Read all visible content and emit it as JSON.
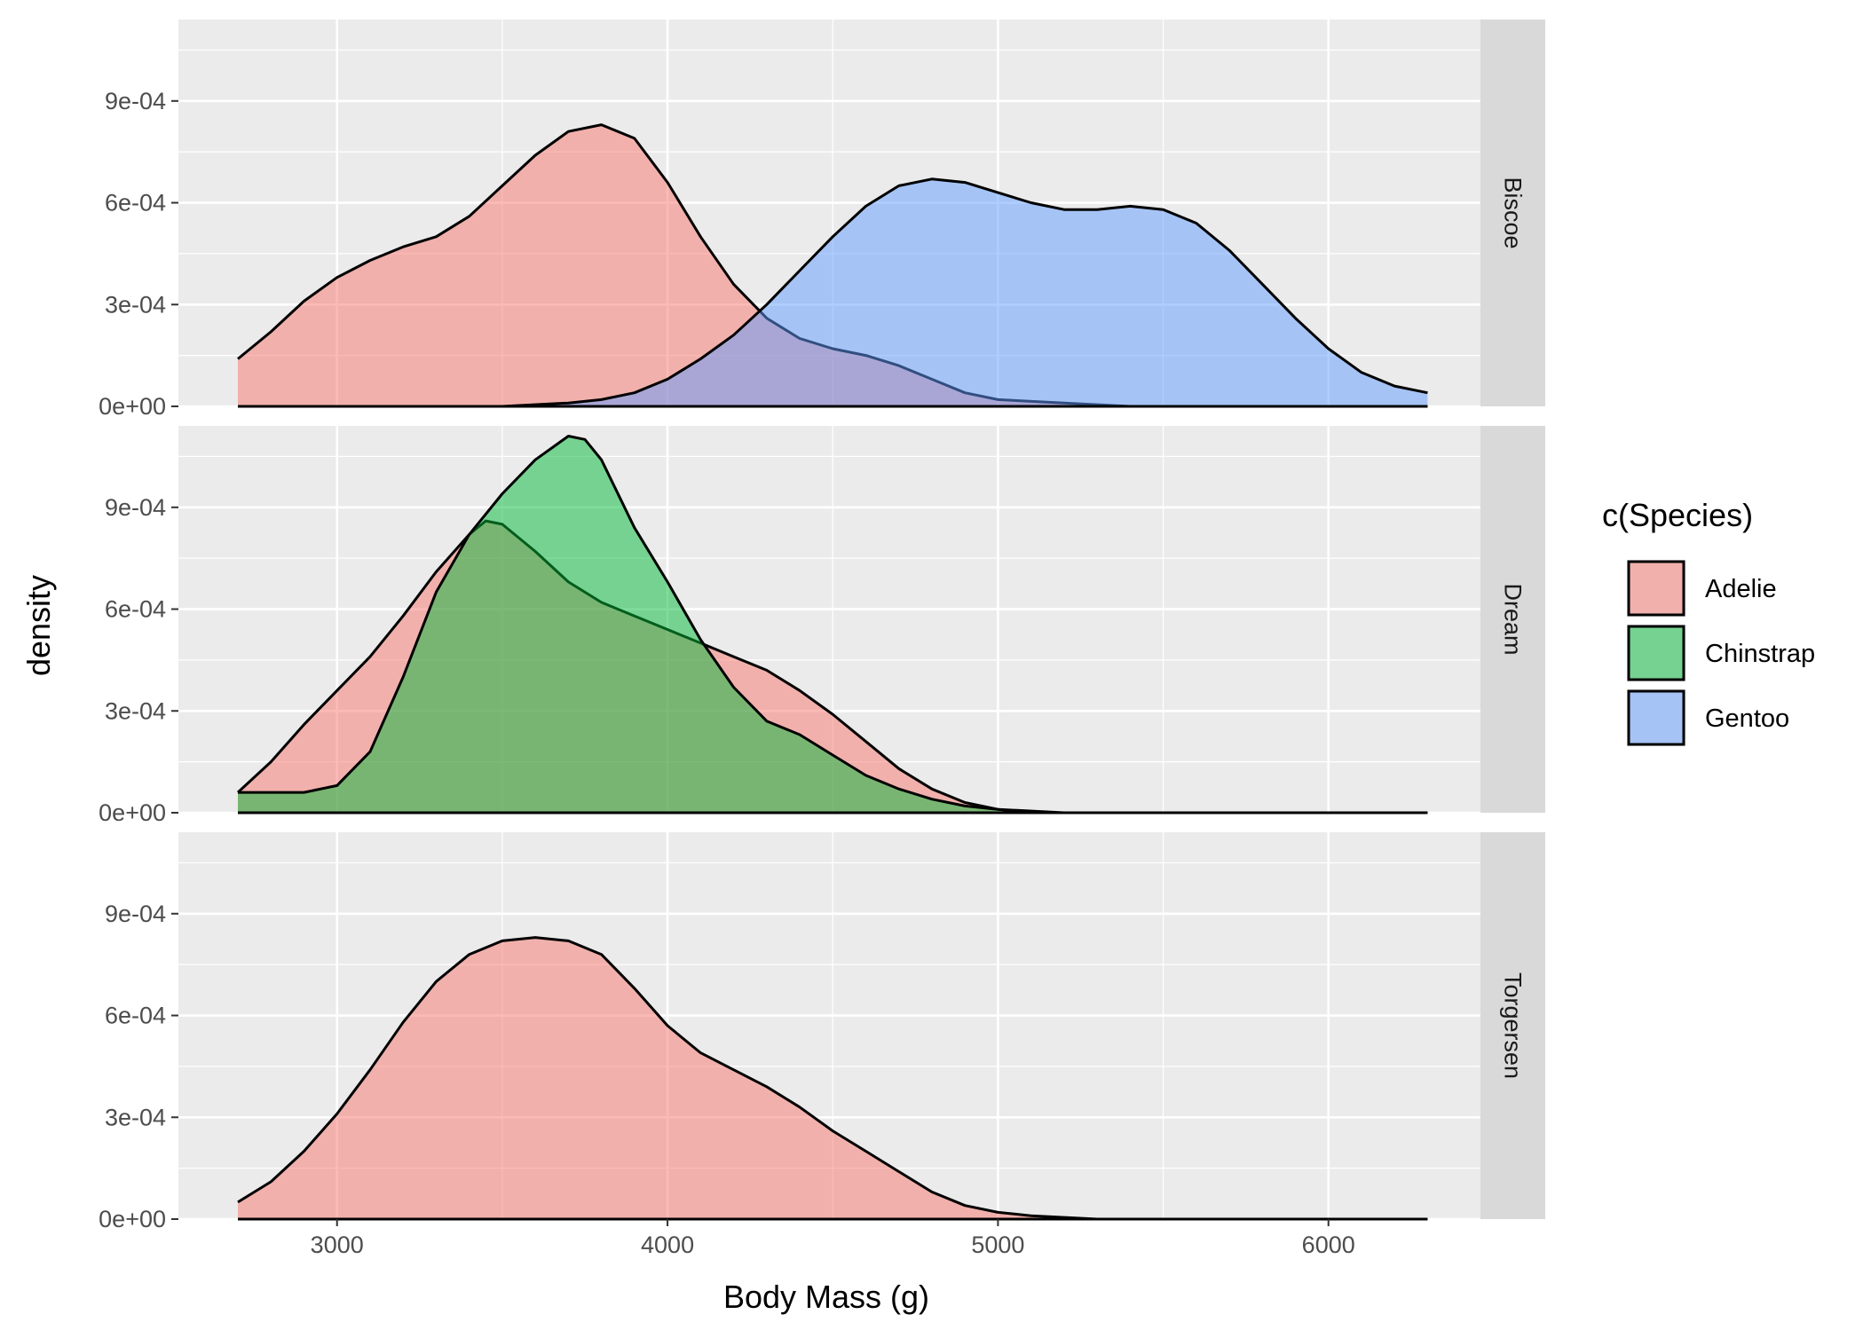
{
  "chart_data": {
    "type": "area",
    "subtype": "faceted density",
    "xlabel": "Body Mass (g)",
    "ylabel": "density",
    "xlim": [
      2520,
      6460
    ],
    "ylim": [
      0,
      0.00114
    ],
    "x_ticks": [
      3000,
      4000,
      5000,
      6000
    ],
    "y_ticks": [
      0,
      0.0003,
      0.0006,
      0.0009
    ],
    "y_tick_labels": [
      "0e+00",
      "3e-04",
      "6e-04",
      "9e-04"
    ],
    "grid": true,
    "fill_alpha": 0.5,
    "legend": {
      "title": "c(Species)",
      "position": "right",
      "entries": [
        {
          "name": "Adelie",
          "color": "#F8766D"
        },
        {
          "name": "Chinstrap",
          "color": "#00BA38"
        },
        {
          "name": "Gentoo",
          "color": "#619CFF"
        }
      ]
    },
    "facets": [
      {
        "label": "Biscoe",
        "series": [
          {
            "name": "Adelie",
            "color": "#F8766D",
            "x": [
              2700,
              2800,
              2900,
              3000,
              3100,
              3200,
              3300,
              3400,
              3500,
              3600,
              3700,
              3800,
              3900,
              4000,
              4100,
              4200,
              4300,
              4400,
              4500,
              4600,
              4700,
              4800,
              4900,
              5000,
              5200,
              5400,
              5600,
              5800,
              6000,
              6300
            ],
            "y": [
              0.00014,
              0.00022,
              0.00031,
              0.00038,
              0.00043,
              0.00047,
              0.0005,
              0.00056,
              0.00065,
              0.00074,
              0.00081,
              0.00083,
              0.00079,
              0.00066,
              0.0005,
              0.00036,
              0.00026,
              0.0002,
              0.00017,
              0.00015,
              0.00012,
              8e-05,
              4e-05,
              2e-05,
              1e-05,
              0.0,
              0.0,
              0.0,
              0.0,
              0.0
            ]
          },
          {
            "name": "Gentoo",
            "color": "#619CFF",
            "x": [
              2700,
              3200,
              3500,
              3700,
              3800,
              3900,
              4000,
              4100,
              4200,
              4300,
              4400,
              4500,
              4600,
              4700,
              4800,
              4900,
              5000,
              5100,
              5200,
              5300,
              5400,
              5500,
              5600,
              5700,
              5800,
              5900,
              6000,
              6100,
              6200,
              6300
            ],
            "y": [
              0.0,
              0.0,
              0.0,
              1e-05,
              2e-05,
              4e-05,
              8e-05,
              0.00014,
              0.00021,
              0.0003,
              0.0004,
              0.0005,
              0.00059,
              0.00065,
              0.00067,
              0.00066,
              0.00063,
              0.0006,
              0.00058,
              0.00058,
              0.00059,
              0.00058,
              0.00054,
              0.00046,
              0.00036,
              0.00026,
              0.00017,
              0.0001,
              6e-05,
              4e-05
            ]
          }
        ]
      },
      {
        "label": "Dream",
        "series": [
          {
            "name": "Adelie",
            "color": "#F8766D",
            "x": [
              2700,
              2800,
              2900,
              3000,
              3100,
              3200,
              3300,
              3400,
              3450,
              3500,
              3600,
              3700,
              3800,
              3900,
              4000,
              4100,
              4200,
              4300,
              4400,
              4500,
              4600,
              4700,
              4800,
              4900,
              5000,
              5200,
              5500,
              6300
            ],
            "y": [
              6e-05,
              0.00015,
              0.00026,
              0.00036,
              0.00046,
              0.00058,
              0.00071,
              0.00082,
              0.00086,
              0.00085,
              0.00077,
              0.00068,
              0.00062,
              0.00058,
              0.00054,
              0.0005,
              0.00046,
              0.00042,
              0.00036,
              0.00029,
              0.00021,
              0.00013,
              7e-05,
              3e-05,
              1e-05,
              0.0,
              0.0,
              0.0
            ]
          },
          {
            "name": "Chinstrap",
            "color": "#00BA38",
            "x": [
              2700,
              2800,
              2900,
              3000,
              3100,
              3200,
              3300,
              3400,
              3500,
              3600,
              3700,
              3750,
              3800,
              3900,
              4000,
              4100,
              4200,
              4300,
              4400,
              4500,
              4600,
              4700,
              4800,
              4900,
              5000,
              5100
            ],
            "y": [
              6e-05,
              6e-05,
              6e-05,
              8e-05,
              0.00018,
              0.0004,
              0.00065,
              0.00082,
              0.00094,
              0.00104,
              0.00111,
              0.0011,
              0.00104,
              0.00084,
              0.00068,
              0.00051,
              0.00037,
              0.00027,
              0.00023,
              0.00017,
              0.00011,
              7e-05,
              4e-05,
              2e-05,
              1e-05,
              0.0
            ]
          }
        ]
      },
      {
        "label": "Torgersen",
        "series": [
          {
            "name": "Adelie",
            "color": "#F8766D",
            "x": [
              2700,
              2800,
              2900,
              3000,
              3100,
              3200,
              3300,
              3400,
              3500,
              3600,
              3700,
              3800,
              3900,
              4000,
              4100,
              4200,
              4300,
              4400,
              4500,
              4600,
              4700,
              4800,
              4900,
              5000,
              5100,
              5300,
              5600,
              6300
            ],
            "y": [
              5e-05,
              0.00011,
              0.0002,
              0.00031,
              0.00044,
              0.00058,
              0.0007,
              0.00078,
              0.00082,
              0.00083,
              0.00082,
              0.00078,
              0.00068,
              0.00057,
              0.00049,
              0.00044,
              0.00039,
              0.00033,
              0.00026,
              0.0002,
              0.00014,
              8e-05,
              4e-05,
              2e-05,
              1e-05,
              0.0,
              0.0,
              0.0
            ]
          }
        ]
      }
    ]
  }
}
